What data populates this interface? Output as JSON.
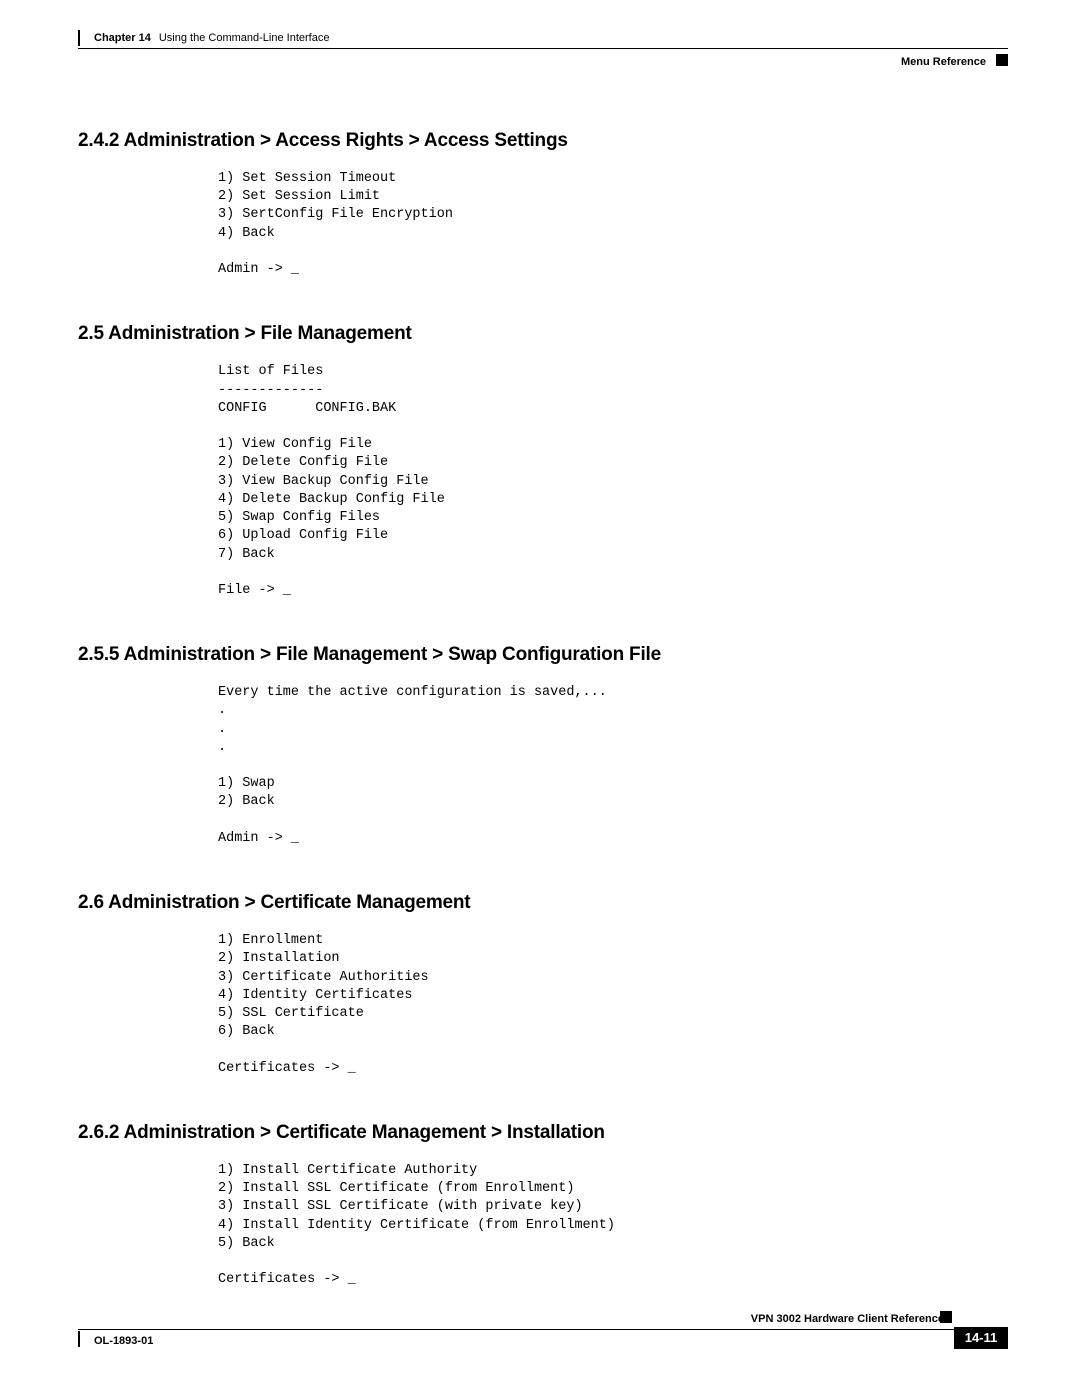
{
  "header": {
    "chapter_label": "Chapter 14",
    "chapter_title": "Using the Command-Line Interface",
    "menu_ref": "Menu Reference"
  },
  "sections": [
    {
      "heading": "2.4.2 Administration > Access Rights > Access Settings",
      "code": "1) Set Session Timeout\n2) Set Session Limit\n3) SertConfig File Encryption\n4) Back\n\nAdmin -> _"
    },
    {
      "heading": "2.5 Administration > File Management",
      "code": "List of Files\n-------------\nCONFIG      CONFIG.BAK\n\n1) View Config File\n2) Delete Config File\n3) View Backup Config File\n4) Delete Backup Config File\n5) Swap Config Files\n6) Upload Config File\n7) Back\n\nFile -> _"
    },
    {
      "heading": "2.5.5 Administration > File Management > Swap Configuration File",
      "code": "Every time the active configuration is saved,...\n.\n.\n.\n\n1) Swap\n2) Back\n\nAdmin -> _"
    },
    {
      "heading": "2.6 Administration > Certificate Management",
      "code": "1) Enrollment\n2) Installation\n3) Certificate Authorities\n4) Identity Certificates\n5) SSL Certificate\n6) Back\n\nCertificates -> _"
    },
    {
      "heading": "2.6.2 Administration > Certificate Management > Installation",
      "code": "1) Install Certificate Authority\n2) Install SSL Certificate (from Enrollment)\n3) Install SSL Certificate (with private key)\n4) Install Identity Certificate (from Enrollment)\n5) Back\n\nCertificates -> _"
    }
  ],
  "footer": {
    "doc_title": "VPN 3002 Hardware Client Reference",
    "ol": "OL-1893-01",
    "page": "14-11"
  }
}
